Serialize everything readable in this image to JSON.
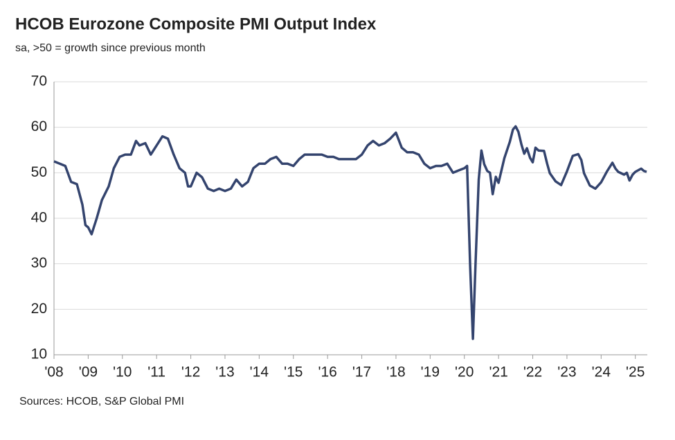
{
  "chart_data": {
    "type": "line",
    "title": "HCOB Eurozone Composite PMI Output Index",
    "subtitle": "sa, >50 = growth since previous month",
    "source": "Sources: HCOB, S&P Global PMI",
    "series": [
      {
        "name": "Composite PMI Output Index",
        "color": "#34446e",
        "x": [
          2008.0,
          2008.17,
          2008.33,
          2008.5,
          2008.67,
          2008.83,
          2008.92,
          2009.0,
          2009.1,
          2009.25,
          2009.4,
          2009.6,
          2009.75,
          2009.92,
          2010.08,
          2010.25,
          2010.4,
          2010.5,
          2010.67,
          2010.83,
          2011.0,
          2011.17,
          2011.33,
          2011.5,
          2011.67,
          2011.83,
          2011.92,
          2012.0,
          2012.17,
          2012.33,
          2012.5,
          2012.67,
          2012.83,
          2013.0,
          2013.17,
          2013.33,
          2013.5,
          2013.67,
          2013.83,
          2014.0,
          2014.17,
          2014.33,
          2014.5,
          2014.67,
          2014.83,
          2015.0,
          2015.17,
          2015.33,
          2015.5,
          2015.67,
          2015.83,
          2016.0,
          2016.17,
          2016.33,
          2016.5,
          2016.67,
          2016.83,
          2017.0,
          2017.17,
          2017.33,
          2017.5,
          2017.67,
          2017.83,
          2018.0,
          2018.17,
          2018.33,
          2018.5,
          2018.67,
          2018.83,
          2019.0,
          2019.17,
          2019.33,
          2019.5,
          2019.67,
          2019.83,
          2020.0,
          2020.08,
          2020.17,
          2020.25,
          2020.33,
          2020.42,
          2020.5,
          2020.58,
          2020.67,
          2020.75,
          2020.83,
          2020.92,
          2021.0,
          2021.17,
          2021.33,
          2021.42,
          2021.5,
          2021.58,
          2021.67,
          2021.75,
          2021.83,
          2021.92,
          2022.0,
          2022.08,
          2022.17,
          2022.33,
          2022.42,
          2022.5,
          2022.67,
          2022.83,
          2023.0,
          2023.17,
          2023.33,
          2023.42,
          2023.5,
          2023.67,
          2023.83,
          2024.0,
          2024.17,
          2024.33,
          2024.42,
          2024.5,
          2024.67,
          2024.75,
          2024.83,
          2024.92,
          2025.0,
          2025.17,
          2025.25,
          2025.33
        ],
        "values": [
          52.5,
          52,
          51.5,
          48,
          47.5,
          43,
          38.5,
          38,
          36.5,
          40,
          44,
          47,
          51,
          53.5,
          54,
          54,
          57,
          56,
          56.5,
          54,
          56,
          58,
          57.5,
          54,
          51,
          50,
          47,
          47,
          50,
          49,
          46.5,
          46,
          46.5,
          46,
          46.5,
          48.5,
          47,
          48,
          51,
          52,
          52,
          53,
          53.5,
          52,
          52,
          51.5,
          53,
          54,
          54,
          54,
          54,
          53.5,
          53.5,
          53,
          53,
          53,
          53,
          54,
          56,
          57,
          56,
          56.5,
          57.5,
          58.8,
          55.5,
          54.5,
          54.5,
          54,
          52,
          51,
          51.5,
          51.5,
          52,
          50,
          50.5,
          51,
          51.5,
          29.5,
          13.5,
          30.5,
          48.5,
          54.9,
          51.9,
          50.4,
          50,
          45.3,
          49.1,
          47.8,
          53.2,
          56.8,
          59.5,
          60.2,
          59,
          56.2,
          54.2,
          55.4,
          53.3,
          52.3,
          55.5,
          54.9,
          54.8,
          52,
          49.9,
          48.1,
          47.3,
          50.3,
          53.7,
          54.1,
          52.8,
          49.9,
          47.2,
          46.5,
          47.9,
          50.3,
          52.2,
          50.9,
          50.2,
          49.6,
          50,
          48.3,
          49.6,
          50.2,
          50.9,
          50.4,
          50.2
        ]
      }
    ],
    "xlim": [
      2008,
      2025.35
    ],
    "xticks": [
      {
        "value": 2008,
        "label": "'08"
      },
      {
        "value": 2009,
        "label": "'09"
      },
      {
        "value": 2010,
        "label": "'10"
      },
      {
        "value": 2011,
        "label": "'11"
      },
      {
        "value": 2012,
        "label": "'12"
      },
      {
        "value": 2013,
        "label": "'13"
      },
      {
        "value": 2014,
        "label": "'14"
      },
      {
        "value": 2015,
        "label": "'15"
      },
      {
        "value": 2016,
        "label": "'16"
      },
      {
        "value": 2017,
        "label": "'17"
      },
      {
        "value": 2018,
        "label": "'18"
      },
      {
        "value": 2019,
        "label": "'19"
      },
      {
        "value": 2020,
        "label": "'20"
      },
      {
        "value": 2021,
        "label": "'21"
      },
      {
        "value": 2022,
        "label": "'22"
      },
      {
        "value": 2023,
        "label": "'23"
      },
      {
        "value": 2024,
        "label": "'24"
      },
      {
        "value": 2025,
        "label": "'25"
      }
    ],
    "ylim": [
      10,
      70
    ],
    "yticks": [
      10,
      20,
      30,
      40,
      50,
      60,
      70
    ],
    "grid": true
  }
}
